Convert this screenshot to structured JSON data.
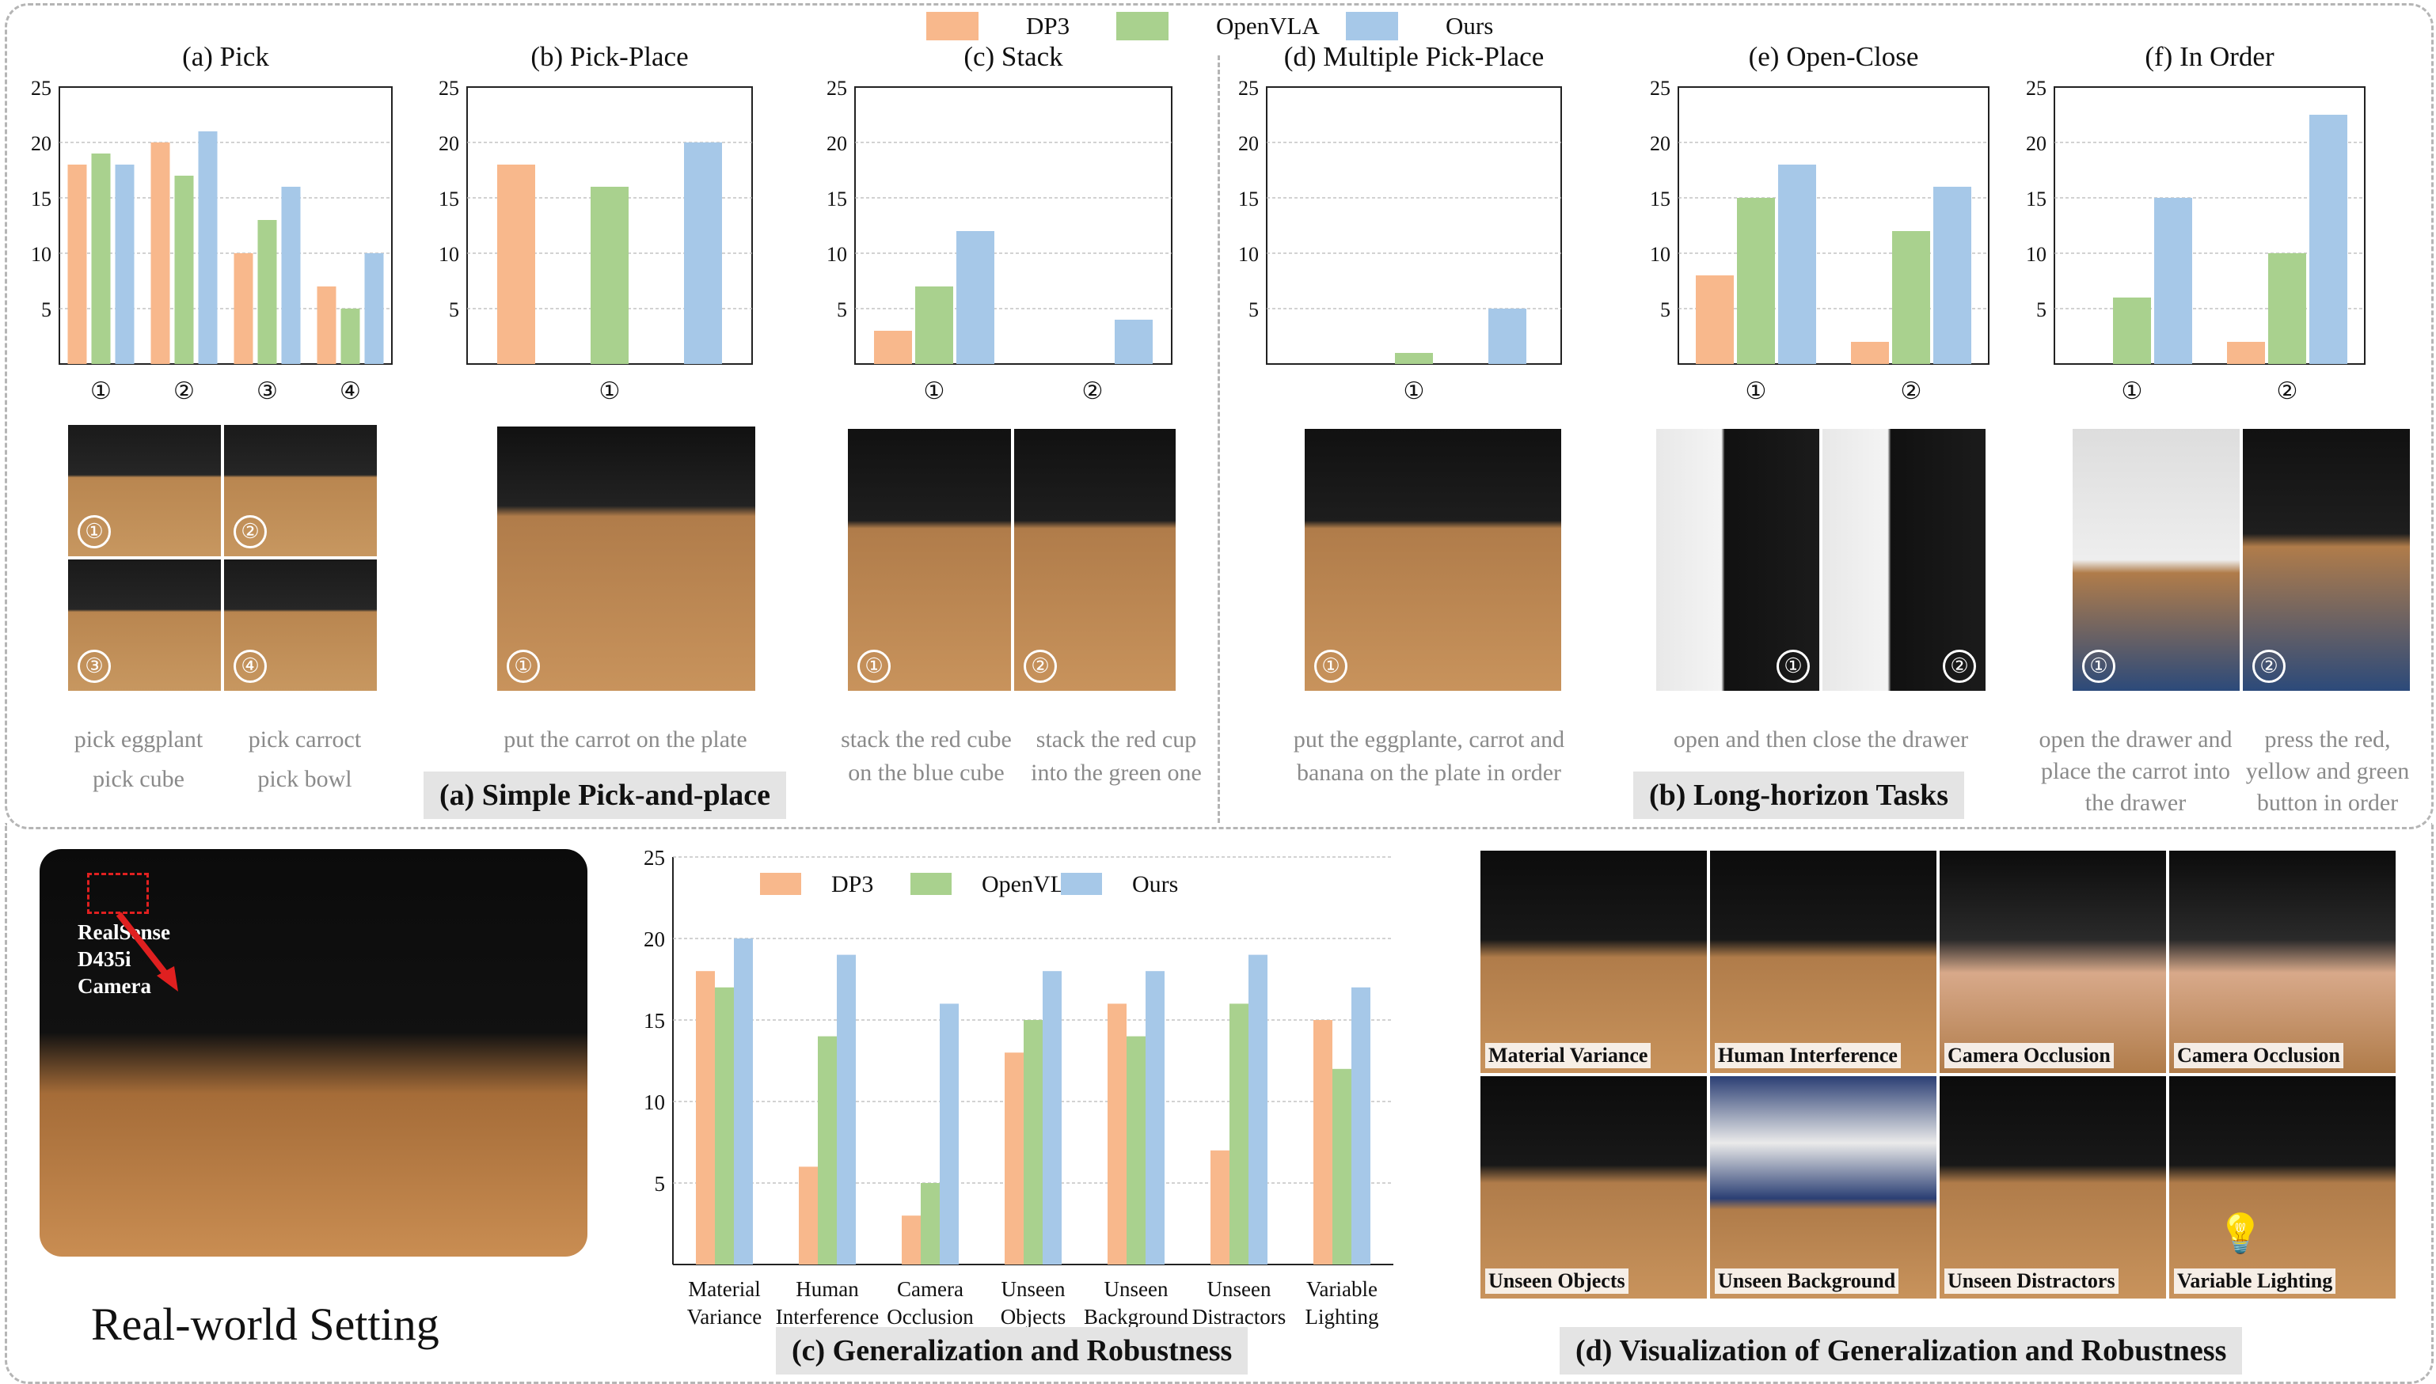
{
  "colors": {
    "dp3": "#f8b88c",
    "openvla": "#a9d18e",
    "ours": "#a6c8e8",
    "grid": "#b8b8b8"
  },
  "legend_top": [
    "DP3",
    "OpenVLA",
    "Ours"
  ],
  "chart_data": [
    {
      "id": "pick",
      "type": "bar",
      "title": "(a) Pick",
      "categories": [
        "①",
        "②",
        "③",
        "④"
      ],
      "ylim": [
        0,
        25
      ],
      "yticks": [
        5,
        10,
        15,
        20,
        25
      ],
      "series": [
        {
          "name": "DP3",
          "values": [
            18,
            20,
            10,
            7
          ]
        },
        {
          "name": "OpenVLA",
          "values": [
            19,
            17,
            13,
            5
          ]
        },
        {
          "name": "Ours",
          "values": [
            18,
            21,
            16,
            10
          ]
        }
      ]
    },
    {
      "id": "pickplace",
      "type": "bar",
      "title": "(b) Pick-Place",
      "categories": [
        "①"
      ],
      "ylim": [
        0,
        25
      ],
      "yticks": [
        5,
        10,
        15,
        20,
        25
      ],
      "series": [
        {
          "name": "DP3",
          "values": [
            18
          ]
        },
        {
          "name": "OpenVLA",
          "values": [
            16
          ]
        },
        {
          "name": "Ours",
          "values": [
            20
          ]
        }
      ]
    },
    {
      "id": "stack",
      "type": "bar",
      "title": "(c) Stack",
      "categories": [
        "①",
        "②"
      ],
      "ylim": [
        0,
        25
      ],
      "yticks": [
        5,
        10,
        15,
        20,
        25
      ],
      "series": [
        {
          "name": "DP3",
          "values": [
            3,
            0
          ]
        },
        {
          "name": "OpenVLA",
          "values": [
            7,
            0
          ]
        },
        {
          "name": "Ours",
          "values": [
            12,
            4
          ]
        }
      ]
    },
    {
      "id": "multi",
      "type": "bar",
      "title": "(d)  Multiple Pick-Place",
      "categories": [
        "①"
      ],
      "ylim": [
        0,
        25
      ],
      "yticks": [
        5,
        10,
        15,
        20,
        25
      ],
      "series": [
        {
          "name": "DP3",
          "values": [
            0
          ]
        },
        {
          "name": "OpenVLA",
          "values": [
            1
          ]
        },
        {
          "name": "Ours",
          "values": [
            5
          ]
        }
      ]
    },
    {
      "id": "openclose",
      "type": "bar",
      "title": "(e) Open-Close",
      "categories": [
        "①",
        "②"
      ],
      "ylim": [
        0,
        25
      ],
      "yticks": [
        5,
        10,
        15,
        20,
        25
      ],
      "series": [
        {
          "name": "DP3",
          "values": [
            8,
            2
          ]
        },
        {
          "name": "OpenVLA",
          "values": [
            15,
            12
          ]
        },
        {
          "name": "Ours",
          "values": [
            18,
            16
          ]
        }
      ]
    },
    {
      "id": "inorder",
      "type": "bar",
      "title": "(f) In Order",
      "categories": [
        "①",
        "②"
      ],
      "ylim": [
        0,
        25
      ],
      "yticks": [
        5,
        10,
        15,
        20,
        25
      ],
      "series": [
        {
          "name": "DP3",
          "values": [
            0,
            2
          ]
        },
        {
          "name": "OpenVLA",
          "values": [
            6,
            10
          ]
        },
        {
          "name": "Ours",
          "values": [
            15,
            22.5
          ]
        }
      ]
    },
    {
      "id": "gen",
      "type": "bar",
      "title": "",
      "categories": [
        "Material\nVariance",
        "Human\nInterference",
        "Camera\nOcclusion",
        "Unseen\nObjects",
        "Unseen\nBackground",
        "Unseen\nDistractors",
        "Variable\nLighting"
      ],
      "ylim": [
        0,
        25
      ],
      "yticks": [
        5,
        10,
        15,
        20,
        25
      ],
      "legend": [
        "DP3",
        "OpenVLA",
        "Ours"
      ],
      "series": [
        {
          "name": "DP3",
          "values": [
            18,
            6,
            3,
            13,
            16,
            7,
            15
          ]
        },
        {
          "name": "OpenVLA",
          "values": [
            17,
            14,
            5,
            15,
            14,
            16,
            12
          ]
        },
        {
          "name": "Ours",
          "values": [
            20,
            19,
            16,
            18,
            18,
            19,
            17
          ]
        }
      ]
    }
  ],
  "captions": {
    "pick_a": "pick eggplant",
    "pick_b": "pick carroct",
    "pick_c": "pick cube",
    "pick_d": "pick bowl",
    "pickplace": "put the carrot on the plate",
    "stack_a": "stack the red cube",
    "stack_b": "stack the red cup",
    "stack_c": "on the blue cube",
    "stack_d": "into the green one",
    "multi_a": "put the eggplante, carrot and",
    "multi_b": "banana on the plate in order",
    "openclose": "open and then close the drawer",
    "inorder1_a": "open the drawer and",
    "inorder1_b": "place the carrot into",
    "inorder1_c": "the drawer",
    "inorder2_a": "press the red,",
    "inorder2_b": "yellow and green",
    "inorder2_c": "button in order"
  },
  "section_labels": {
    "simple": "(a) Simple Pick-and-place",
    "long": "(b) Long-horizon Tasks",
    "gen": "(c) Generalization and Robustness",
    "vis": "(d) Visualization of Generalization and Robustness"
  },
  "real_world": {
    "title": "Real-world Setting",
    "camera_l1": "RealSense",
    "camera_l2": "D435i",
    "camera_l3": "Camera"
  },
  "photo_numbers": [
    "①",
    "②",
    "③",
    "④"
  ],
  "vis_labels": [
    "Material  Variance",
    "Human Interference",
    "Camera Occlusion",
    "Camera Occlusion",
    "Unseen Objects",
    "Unseen Background",
    "Unseen Distractors",
    "Variable Lighting"
  ]
}
